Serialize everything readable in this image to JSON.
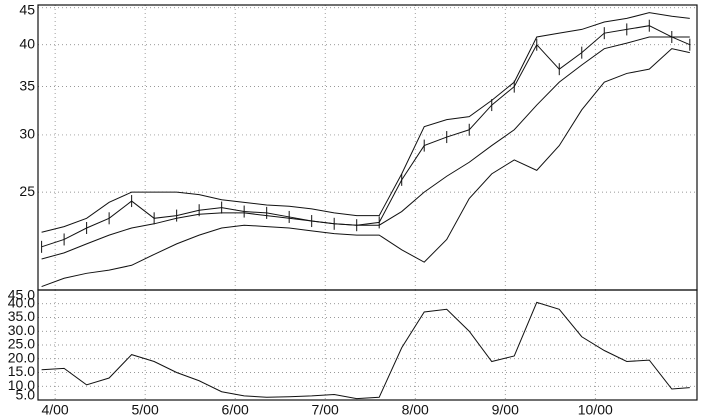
{
  "chart_data": [
    {
      "type": "line",
      "log_y": true,
      "grid": true,
      "x": [
        3.85,
        4.1,
        4.35,
        4.6,
        4.85,
        5.1,
        5.35,
        5.6,
        5.85,
        6.1,
        6.35,
        6.6,
        6.85,
        7.1,
        7.35,
        7.6,
        7.85,
        8.1,
        8.35,
        8.6,
        8.85,
        9.1,
        9.35,
        9.6,
        9.85,
        10.1,
        10.35,
        10.6,
        10.85,
        11.05
      ],
      "series": [
        {
          "color": "#111111",
          "bars": true,
          "values": [
            21.0,
            21.5,
            22.3,
            23.0,
            24.3,
            23.0,
            23.2,
            23.6,
            23.8,
            23.5,
            23.4,
            23.1,
            22.8,
            22.6,
            22.5,
            22.7,
            26.0,
            29.0,
            29.8,
            30.5,
            33.0,
            35.0,
            40.0,
            37.0,
            39.0,
            41.5,
            42.0,
            42.5,
            41.0,
            40.0
          ]
        },
        {
          "color": "#111111",
          "values": [
            22.0,
            22.4,
            23.0,
            24.2,
            25.0,
            25.0,
            25.0,
            24.8,
            24.4,
            24.2,
            24.0,
            23.9,
            23.7,
            23.4,
            23.2,
            23.2,
            26.5,
            30.8,
            31.5,
            31.8,
            33.5,
            35.5,
            41.0,
            41.5,
            42.0,
            43.0,
            43.5,
            44.3,
            43.8,
            43.5
          ]
        },
        {
          "color": "#111111",
          "values": [
            20.2,
            20.6,
            21.2,
            21.8,
            22.3,
            22.6,
            23.0,
            23.3,
            23.4,
            23.4,
            23.2,
            23.0,
            22.8,
            22.6,
            22.5,
            22.5,
            23.5,
            25.0,
            26.3,
            27.5,
            29.0,
            30.5,
            33.0,
            35.5,
            37.5,
            39.5,
            40.2,
            41.0,
            41.0,
            41.0
          ]
        },
        {
          "color": "#111111",
          "values": [
            18.5,
            19.0,
            19.3,
            19.5,
            19.8,
            20.5,
            21.2,
            21.8,
            22.3,
            22.5,
            22.4,
            22.3,
            22.1,
            21.9,
            21.8,
            21.8,
            20.8,
            20.0,
            21.5,
            24.5,
            26.5,
            27.7,
            26.8,
            29.0,
            32.5,
            35.5,
            36.5,
            37.0,
            39.5,
            39.0
          ]
        }
      ],
      "ylim": [
        18.3,
        45.4
      ],
      "yticks": [
        25,
        30,
        35,
        40,
        45
      ],
      "xlim": [
        3.81,
        11.13
      ],
      "xticks": [
        4,
        5,
        6,
        7,
        8,
        9,
        10
      ]
    },
    {
      "type": "line",
      "grid": true,
      "x": [
        3.85,
        4.1,
        4.35,
        4.6,
        4.85,
        5.1,
        5.35,
        5.6,
        5.85,
        6.1,
        6.35,
        6.6,
        6.85,
        7.1,
        7.35,
        7.6,
        7.85,
        8.1,
        8.35,
        8.6,
        8.85,
        9.1,
        9.35,
        9.6,
        9.85,
        10.1,
        10.35,
        10.6,
        10.85,
        11.05
      ],
      "series": [
        {
          "color": "#111111",
          "values": [
            16,
            16.5,
            10.5,
            13,
            21.5,
            19,
            15,
            12,
            8,
            6.5,
            6,
            6.2,
            6.5,
            7,
            5.5,
            6,
            24,
            37,
            38,
            30,
            19,
            21,
            40.5,
            38,
            28,
            23,
            19,
            19.5,
            9,
            9.5
          ]
        }
      ],
      "ylim": [
        5,
        45
      ],
      "yticks": [
        {
          "value": 45,
          "label": "45.0"
        },
        {
          "value": 40,
          "label": "40.0"
        },
        {
          "value": 35,
          "label": "35.0"
        },
        {
          "value": 30,
          "label": "30.0"
        },
        {
          "value": 25,
          "label": "25.0"
        },
        {
          "value": 20,
          "label": "20.0"
        },
        {
          "value": 15,
          "label": "15.0"
        },
        {
          "value": 10,
          "label": "10.0"
        },
        {
          "value": 5,
          "label": "5.0"
        }
      ],
      "xlim": [
        3.81,
        11.13
      ],
      "xticks": [
        {
          "value": 4,
          "label": "4/00"
        },
        {
          "value": 5,
          "label": "5/00"
        },
        {
          "value": 6,
          "label": "6/00"
        },
        {
          "value": 7,
          "label": "7/00"
        },
        {
          "value": 8,
          "label": "8/00"
        },
        {
          "value": 9,
          "label": "9/00"
        },
        {
          "value": 10,
          "label": "10/00"
        }
      ]
    }
  ]
}
